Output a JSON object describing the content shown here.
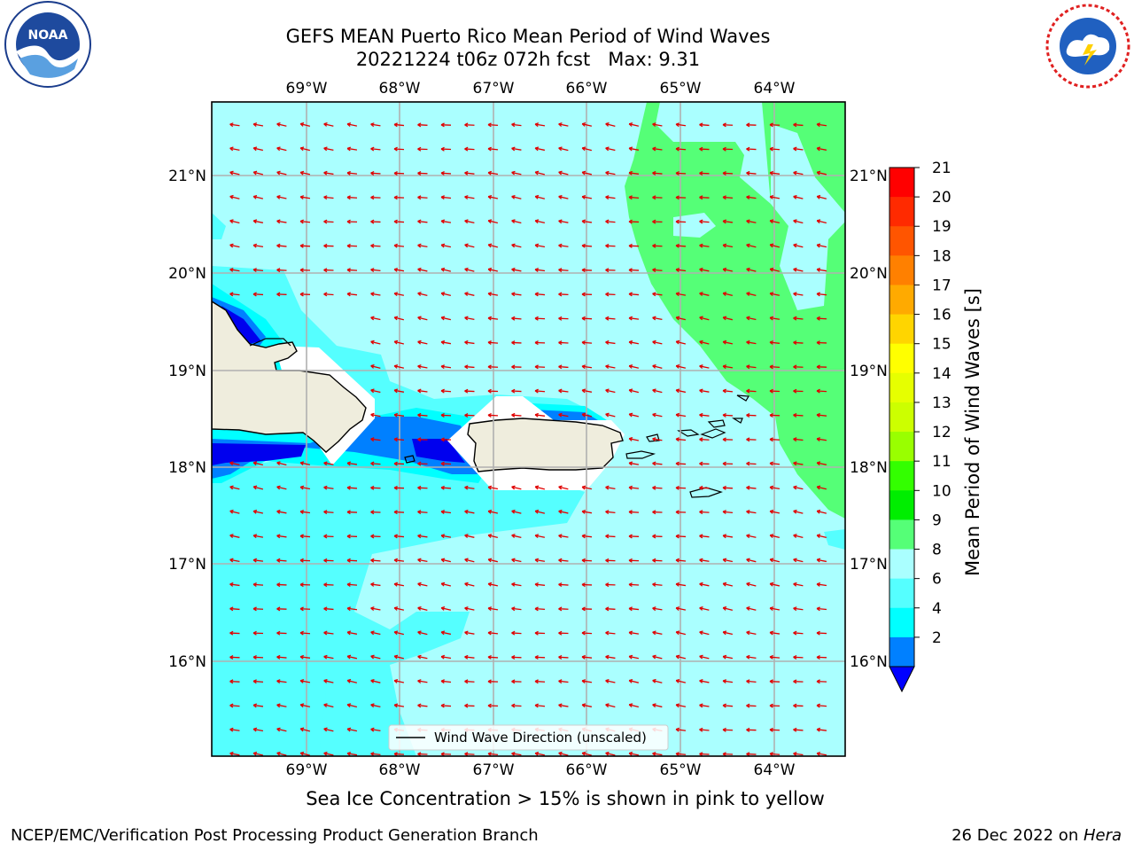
{
  "title_line1": "GEFS MEAN Puerto Rico Mean Period of Wind Waves",
  "title_line2": "20221224 t06z 072h fcst   Max: 9.31",
  "map": {
    "lon_ticks": [
      "69°W",
      "68°W",
      "67°W",
      "66°W",
      "65°W",
      "64°W"
    ],
    "lat_ticks": [
      "21°N",
      "20°N",
      "19°N",
      "18°N",
      "17°N",
      "16°N"
    ],
    "legend_label": "Wind Wave Direction (unscaled)",
    "ocean_color": "#aaffff",
    "land_color": "#efeddd"
  },
  "colorbar": {
    "label": "Mean Period of Wind Waves [s]",
    "ticks": [
      "21",
      "20",
      "19",
      "18",
      "17",
      "16",
      "15",
      "14",
      "13",
      "12",
      "11",
      "10",
      "9",
      "8",
      "6",
      "4",
      "2"
    ],
    "colors": [
      "#ff0000",
      "#ff2a00",
      "#ff5500",
      "#ff8000",
      "#ffaa00",
      "#ffd500",
      "#ffff00",
      "#e6ff00",
      "#ccff00",
      "#99ff00",
      "#33ff00",
      "#00ee00",
      "#55ff77",
      "#aaffff",
      "#55ffff",
      "#00ffff",
      "#0080ff",
      "#0000ff"
    ]
  },
  "ice_note": "Sea Ice Concentration > 15% is shown in pink to yellow",
  "footer_left": "NCEP/EMC/Verification Post Processing Product Generation Branch",
  "footer_date": "26 Dec 2022 on ",
  "footer_machine": "Hera"
}
